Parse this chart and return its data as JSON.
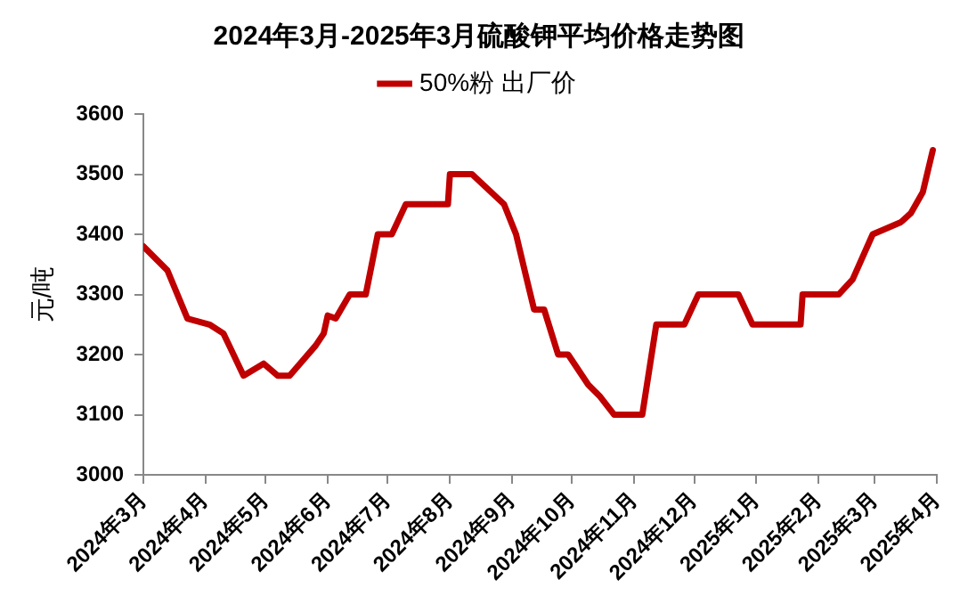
{
  "chart_data": {
    "type": "line",
    "title": "2024年3月-2025年3月硫酸钾平均价格走势图",
    "ylabel": "元/吨",
    "series": [
      {
        "name": "50%粉 出厂价",
        "color": "#c00000",
        "x": [
          "2024-03-01",
          "2024-03-13",
          "2024-03-23",
          "2024-04-03",
          "2024-04-10",
          "2024-04-20",
          "2024-04-30",
          "2024-05-07",
          "2024-05-13",
          "2024-05-26",
          "2024-05-30",
          "2024-06-01",
          "2024-06-05",
          "2024-06-12",
          "2024-06-20",
          "2024-06-26",
          "2024-07-03",
          "2024-07-10",
          "2024-07-31",
          "2024-08-01",
          "2024-08-12",
          "2024-08-28",
          "2024-09-03",
          "2024-09-08",
          "2024-09-12",
          "2024-09-17",
          "2024-09-24",
          "2024-09-29",
          "2024-10-09",
          "2024-10-15",
          "2024-10-22",
          "2024-11-05",
          "2024-11-12",
          "2024-11-26",
          "2024-12-03",
          "2024-12-23",
          "2024-12-30",
          "2025-01-23",
          "2025-01-24",
          "2025-02-11",
          "2025-02-18",
          "2025-02-28",
          "2025-03-14",
          "2025-03-19",
          "2025-03-25",
          "2025-03-30"
        ],
        "values": [
          3380,
          3340,
          3260,
          3250,
          3235,
          3165,
          3185,
          3165,
          3165,
          3215,
          3235,
          3265,
          3260,
          3300,
          3300,
          3400,
          3400,
          3450,
          3450,
          3500,
          3500,
          3450,
          3400,
          3330,
          3275,
          3275,
          3200,
          3200,
          3150,
          3130,
          3100,
          3100,
          3250,
          3250,
          3300,
          3300,
          3250,
          3250,
          3300,
          3300,
          3325,
          3400,
          3420,
          3435,
          3470,
          3540
        ]
      }
    ],
    "xlim": [
      "2024-03-01",
      "2025-04-01"
    ],
    "xticks": [
      {
        "value": "2024-03-01",
        "label": "2024年3月"
      },
      {
        "value": "2024-04-01",
        "label": "2024年4月"
      },
      {
        "value": "2024-05-01",
        "label": "2024年5月"
      },
      {
        "value": "2024-06-01",
        "label": "2024年6月"
      },
      {
        "value": "2024-07-01",
        "label": "2024年7月"
      },
      {
        "value": "2024-08-01",
        "label": "2024年8月"
      },
      {
        "value": "2024-09-01",
        "label": "2024年9月"
      },
      {
        "value": "2024-10-01",
        "label": "2024年10月"
      },
      {
        "value": "2024-11-01",
        "label": "2024年11月"
      },
      {
        "value": "2024-12-01",
        "label": "2024年12月"
      },
      {
        "value": "2025-01-01",
        "label": "2025年1月"
      },
      {
        "value": "2025-02-01",
        "label": "2025年2月"
      },
      {
        "value": "2025-03-01",
        "label": "2025年3月"
      },
      {
        "value": "2025-04-01",
        "label": "2025年4月"
      }
    ],
    "ylim": [
      3000,
      3600
    ],
    "yticks": [
      3000,
      3100,
      3200,
      3300,
      3400,
      3500,
      3600
    ],
    "grid": false,
    "legend": "top",
    "marker": "none",
    "line_style": "solid"
  }
}
